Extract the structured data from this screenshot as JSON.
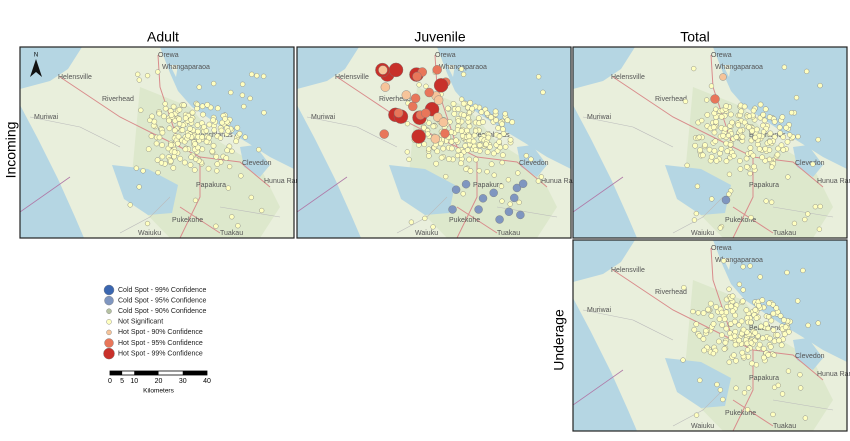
{
  "columns": [
    "Adult",
    "Juvenile",
    "Total"
  ],
  "rows": [
    "Incoming",
    "Underage"
  ],
  "north": "N",
  "places": [
    "Orewa",
    "Whangaparaoa",
    "Helensville",
    "Riverhead",
    "Muriwai",
    "Beachlands",
    "Clevedon",
    "Hunua Ranges",
    "Papakura",
    "Pukekohe",
    "Waiuku",
    "Tuakau"
  ],
  "legend": [
    "Cold Spot - 99% Confidence",
    "Cold Spot - 95% Confidence",
    "Cold Spot - 90% Confidence",
    "Not Significant",
    "Hot Spot - 90% Confidence",
    "Hot Spot - 95% Confidence",
    "Hot Spot - 99% Confidence"
  ],
  "scale": {
    "ticks": [
      0,
      5,
      10,
      20,
      30,
      40
    ],
    "unit": "Kilometers"
  }
}
